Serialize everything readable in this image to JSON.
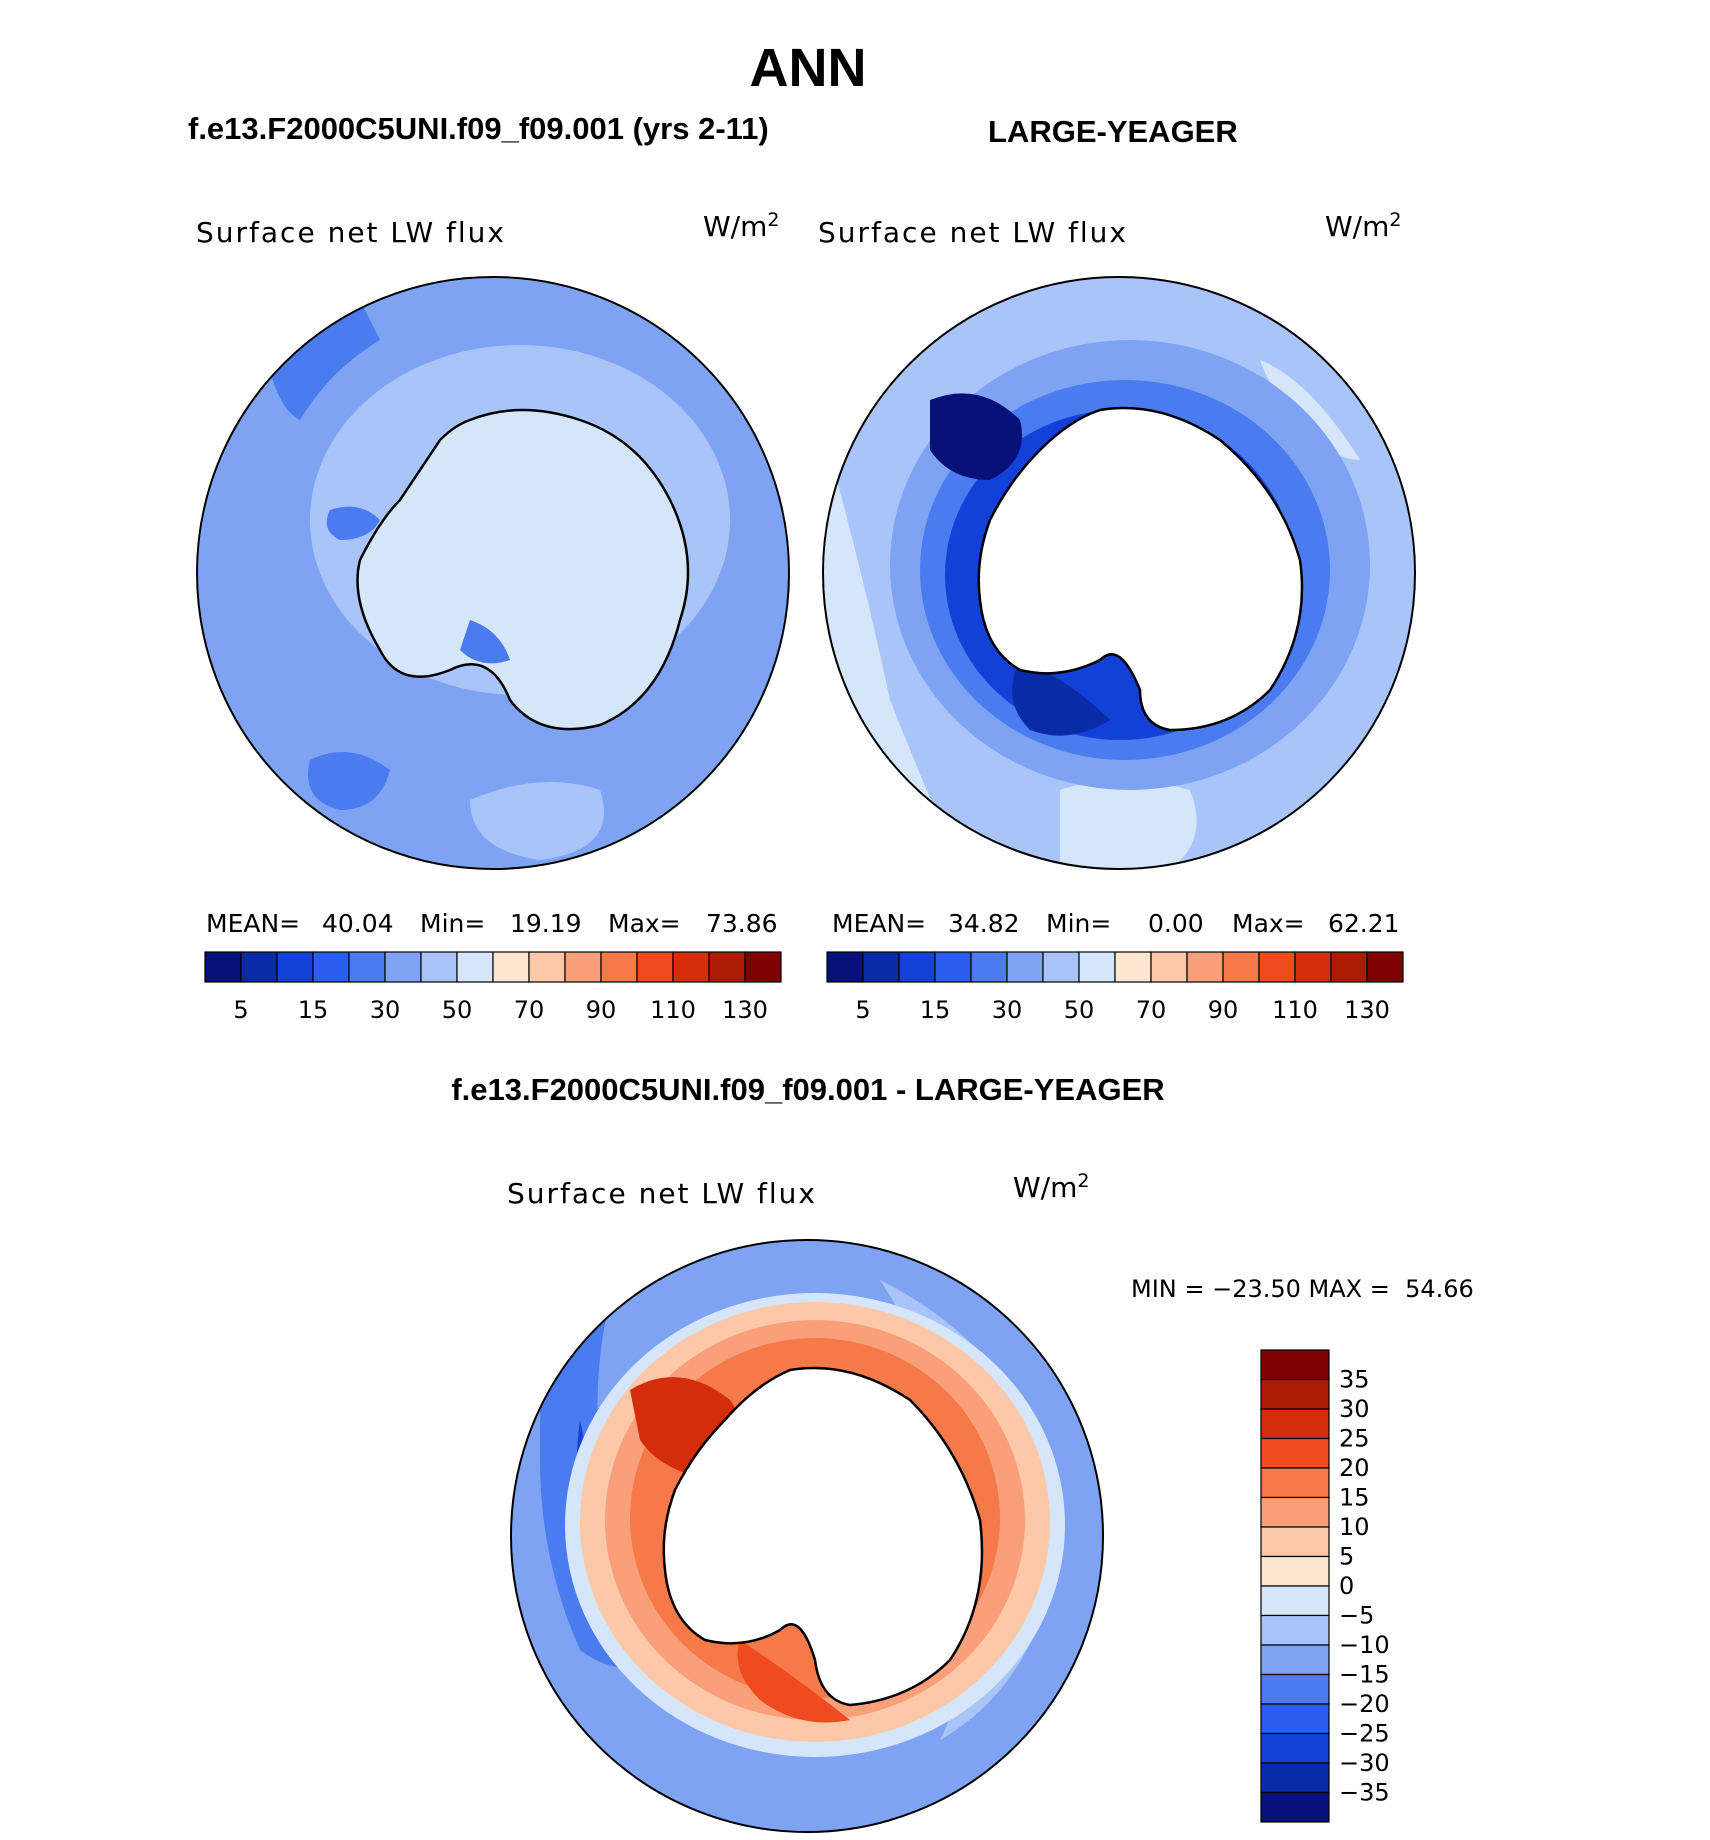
{
  "title": "ANN",
  "left_panel": {
    "case_title": "f.e13.F2000C5UNI.f09_f09.001 (yrs 2-11)",
    "variable": "Surface net LW flux",
    "units": "W/m",
    "units_sup": "2",
    "stats": {
      "mean_label": "MEAN=",
      "mean": "40.04",
      "min_label": "Min=",
      "min": "19.19",
      "max_label": "Max=",
      "max": "73.86"
    }
  },
  "right_panel": {
    "case_title": "LARGE-YEAGER",
    "variable": "Surface net LW flux",
    "units": "W/m",
    "units_sup": "2",
    "stats": {
      "mean_label": "MEAN=",
      "mean": "34.82",
      "min_label": "Min=",
      "min": "0.00",
      "max_label": "Max=",
      "max": "62.21"
    }
  },
  "diff_panel": {
    "case_title": "f.e13.F2000C5UNI.f09_f09.001 - LARGE-YEAGER",
    "variable": "Surface net LW flux",
    "units": "W/m",
    "units_sup": "2",
    "minmax": "MIN = −23.50 MAX =  54.66"
  },
  "colorbar_abs": {
    "colors": [
      "#08107a",
      "#0a2ba8",
      "#1340d6",
      "#2a5ef0",
      "#4a7bef",
      "#7fa3f3",
      "#a9c4f8",
      "#d6e6fa",
      "#fde6d2",
      "#fcc8a8",
      "#f9a07a",
      "#f6794a",
      "#f04a20",
      "#d42d0a",
      "#ad1a05",
      "#7f0000"
    ],
    "labels": [
      "5",
      "15",
      "30",
      "50",
      "70",
      "90",
      "110",
      "130"
    ]
  },
  "colorbar_diff": {
    "colors": [
      "#7f0000",
      "#ad1a05",
      "#d42d0a",
      "#f04a20",
      "#f6794a",
      "#f9a07a",
      "#fcc8a8",
      "#fde6d2",
      "#d6e6fa",
      "#a9c4f8",
      "#7fa3f3",
      "#4a7bef",
      "#2a5ef0",
      "#1340d6",
      "#0a2ba8",
      "#08107a"
    ],
    "labels": [
      "35",
      "30",
      "25",
      "20",
      "15",
      "10",
      "5",
      "0",
      "−5",
      "−10",
      "−15",
      "−20",
      "−25",
      "−30",
      "−35"
    ]
  }
}
